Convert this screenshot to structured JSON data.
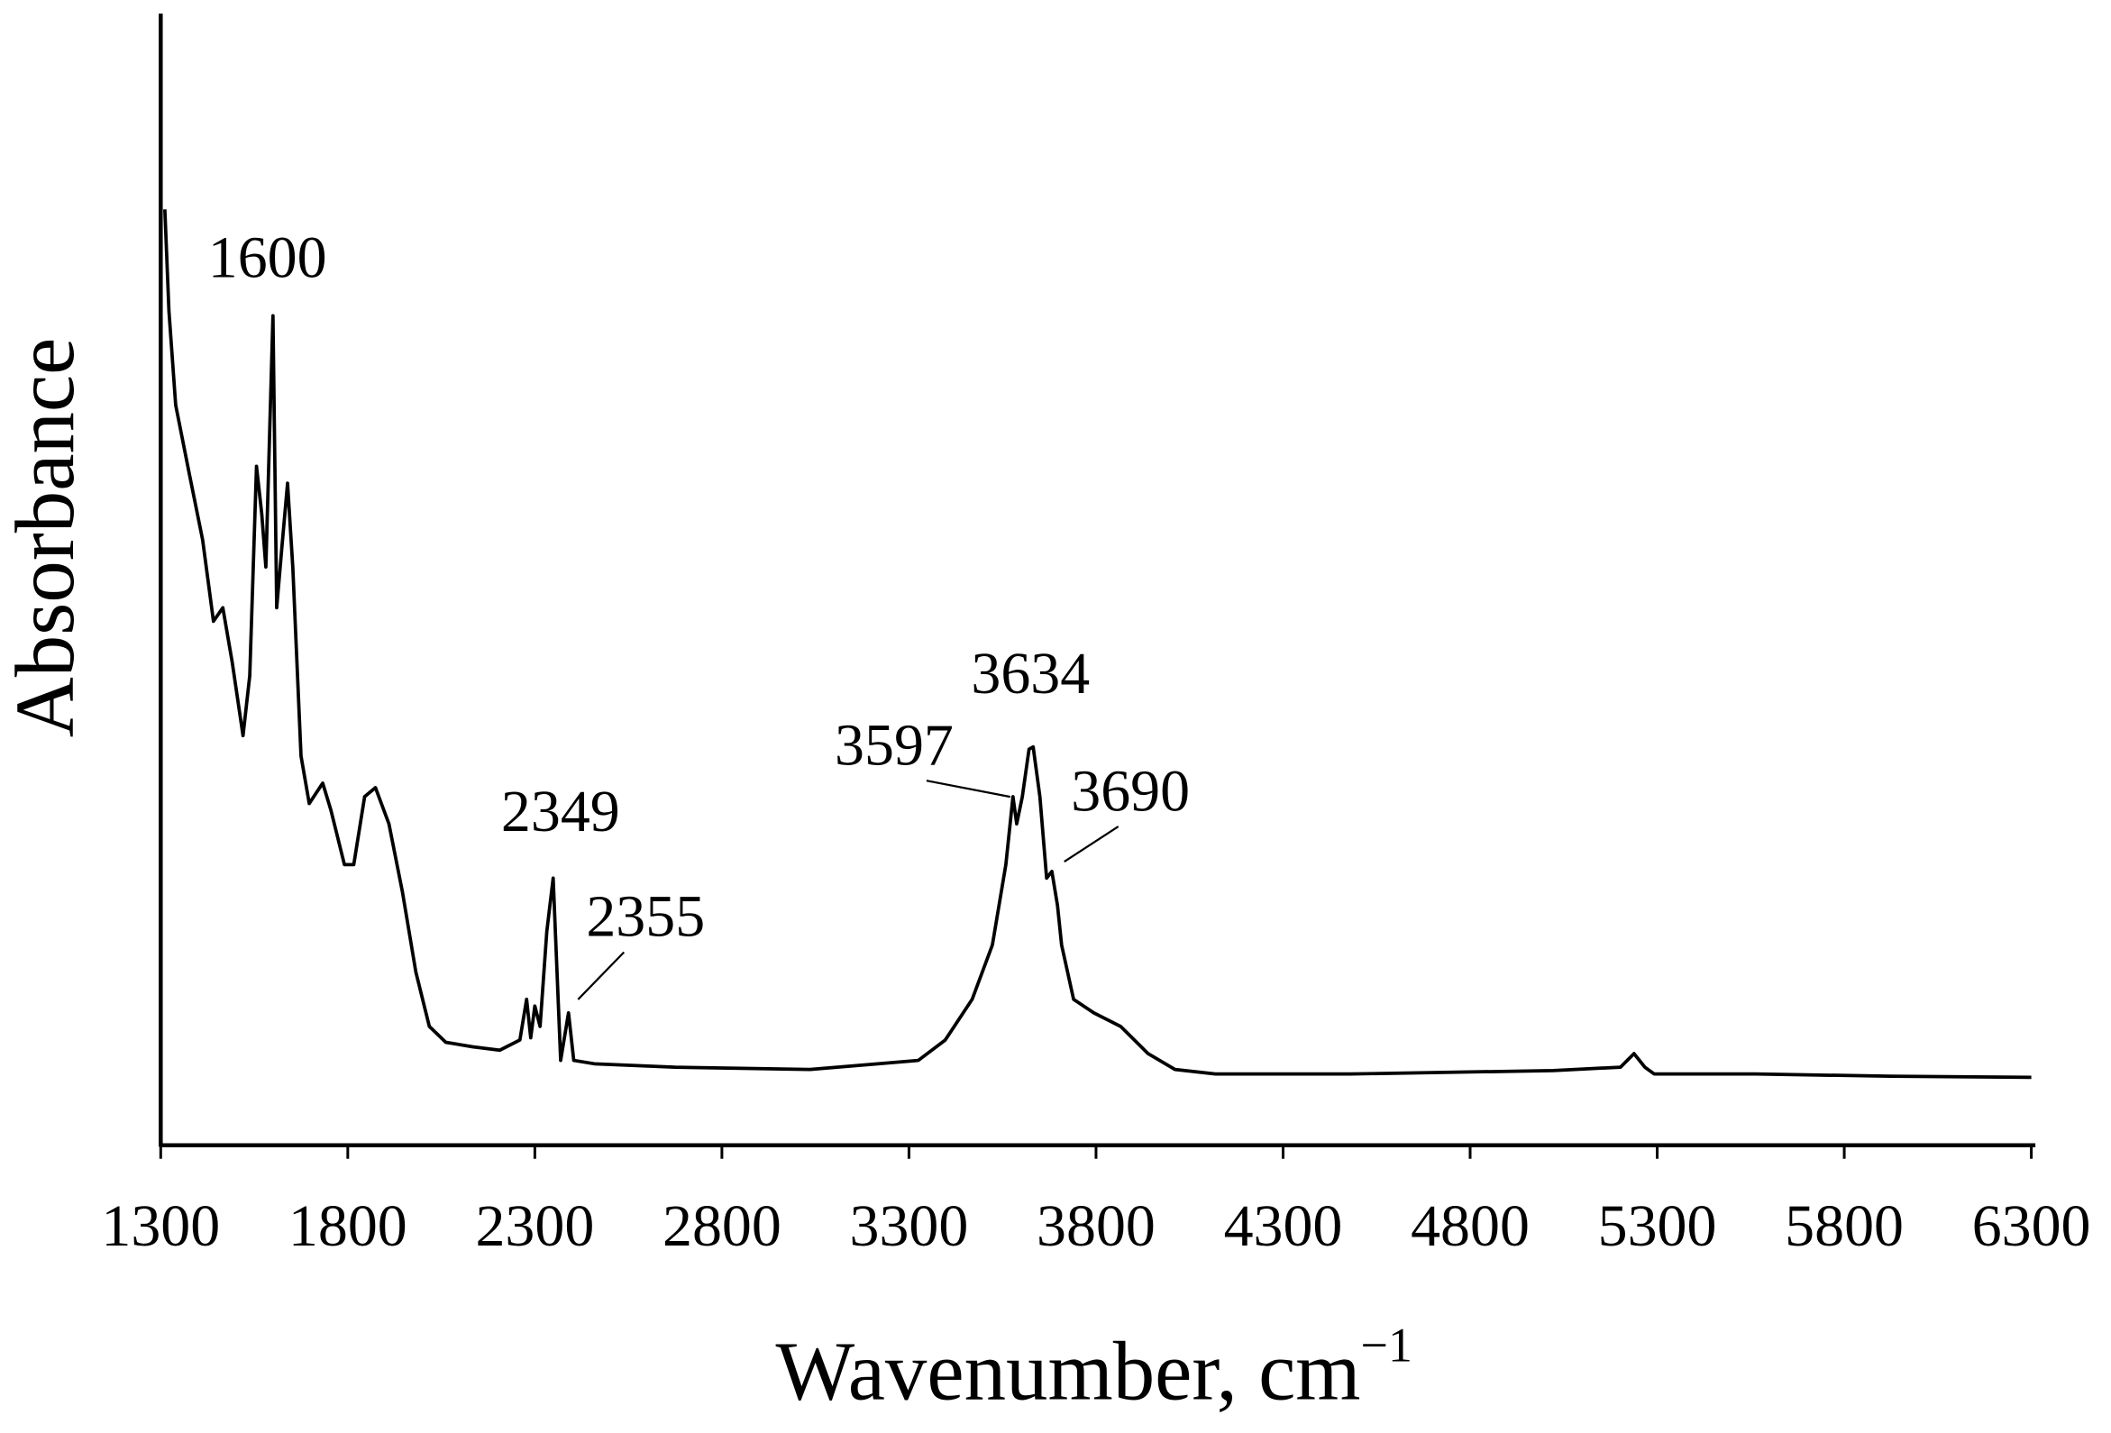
{
  "chart_data": {
    "type": "line",
    "x_label": "Wavenumber, cm",
    "x_label_superscript": "−1",
    "y_label": "Absorbance",
    "xlim": [
      1300,
      6300
    ],
    "xticks": [
      1300,
      1800,
      2300,
      2800,
      3300,
      3800,
      4300,
      4800,
      5300,
      5800,
      6300
    ],
    "ylim": [
      0,
      1
    ],
    "annotations": [
      "1600",
      "2349",
      "2355",
      "3597",
      "3634",
      "3690"
    ],
    "series": [
      {
        "color": "#000000",
        "x": [
          1311,
          1322,
          1340,
          1376,
          1412,
          1441,
          1466,
          1491,
          1520,
          1538,
          1556,
          1570,
          1581,
          1600,
          1610,
          1624,
          1639,
          1653,
          1675,
          1697,
          1733,
          1755,
          1791,
          1816,
          1845,
          1874,
          1910,
          1946,
          1982,
          2018,
          2062,
          2134,
          2206,
          2260,
          2278,
          2289,
          2300,
          2314,
          2332,
          2349,
          2369,
          2390,
          2404,
          2459,
          2675,
          3036,
          3325,
          3397,
          3469,
          3523,
          3559,
          3578,
          3588,
          3603,
          3621,
          3632,
          3650,
          3668,
          3682,
          3697,
          3708,
          3740,
          3794,
          3866,
          3939,
          4011,
          4119,
          4480,
          5022,
          5202,
          5238,
          5267,
          5292,
          5563,
          5924,
          6300
        ],
        "values": [
          0.827,
          0.737,
          0.654,
          0.594,
          0.535,
          0.463,
          0.475,
          0.427,
          0.362,
          0.415,
          0.6,
          0.558,
          0.511,
          0.733,
          0.475,
          0.529,
          0.585,
          0.511,
          0.344,
          0.302,
          0.32,
          0.296,
          0.248,
          0.248,
          0.308,
          0.316,
          0.284,
          0.224,
          0.153,
          0.105,
          0.091,
          0.087,
          0.084,
          0.093,
          0.129,
          0.095,
          0.123,
          0.105,
          0.189,
          0.236,
          0.075,
          0.117,
          0.075,
          0.072,
          0.069,
          0.067,
          0.075,
          0.093,
          0.129,
          0.177,
          0.248,
          0.308,
          0.284,
          0.308,
          0.35,
          0.352,
          0.308,
          0.236,
          0.242,
          0.212,
          0.177,
          0.129,
          0.117,
          0.105,
          0.081,
          0.067,
          0.063,
          0.063,
          0.066,
          0.069,
          0.081,
          0.069,
          0.063,
          0.063,
          0.061,
          0.06
        ]
      }
    ]
  }
}
